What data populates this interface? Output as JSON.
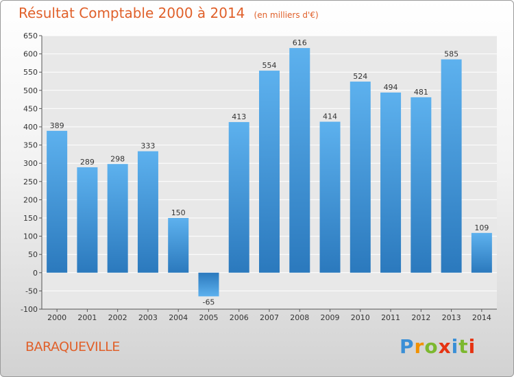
{
  "chart_data": {
    "type": "bar",
    "title": "Résultat Comptable 2000 à 2014",
    "subtitle": "(en milliers d'€)",
    "categories": [
      "2000",
      "2001",
      "2002",
      "2003",
      "2004",
      "2005",
      "2006",
      "2007",
      "2008",
      "2009",
      "2010",
      "2011",
      "2012",
      "2013",
      "2014"
    ],
    "values": [
      389,
      289,
      298,
      333,
      150,
      -65,
      413,
      554,
      616,
      414,
      524,
      494,
      481,
      585,
      109
    ],
    "ylim": [
      -100,
      650
    ],
    "yticks": [
      -100,
      -50,
      0,
      50,
      100,
      150,
      200,
      250,
      300,
      350,
      400,
      450,
      500,
      550,
      600,
      650
    ],
    "grid": true,
    "bar_color": "#3d94d8",
    "accent_color": "#e0602a"
  },
  "place_name": "BARAQUEVILLE",
  "logo": {
    "text": "Proxiti",
    "colors": [
      "#3a8fd6",
      "#f29100",
      "#7cb82f",
      "#e63312",
      "#3a8fd6",
      "#7cb82f",
      "#e63312"
    ]
  }
}
